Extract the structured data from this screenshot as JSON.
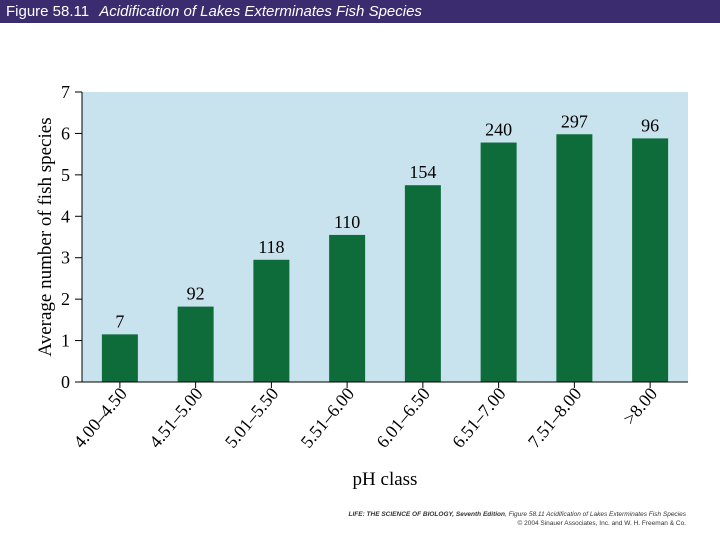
{
  "figure": {
    "number": "Figure 58.11",
    "caption": "Acidification of Lakes Exterminates Fish Species"
  },
  "colors": {
    "plot_background": "#c9e3ee",
    "bar": "#0e6b3a",
    "header": "#3a2c6e"
  },
  "chart_data": {
    "type": "bar",
    "title": "",
    "xlabel": "pH class",
    "ylabel": "Average number of fish species",
    "categories": [
      "4.00–4.50",
      "4.51–5.00",
      "5.01–5.50",
      "5.51–6.00",
      "6.01–6.50",
      "6.51–7.00",
      "7.51–8.00",
      ">8.00"
    ],
    "values": [
      1.15,
      1.82,
      2.95,
      3.55,
      4.75,
      5.78,
      5.98,
      5.88
    ],
    "data_labels": [
      "7",
      "92",
      "118",
      "110",
      "154",
      "240",
      "297",
      "96"
    ],
    "ylim": [
      0,
      7
    ],
    "yticks": [
      0,
      1,
      2,
      3,
      4,
      5,
      6,
      7
    ],
    "grid": false,
    "legend": "none"
  },
  "credit": {
    "line1_book": "LIFE: THE SCIENCE OF BIOLOGY, Seventh Edition",
    "line1_rest": ", Figure 58.11 Acidification of Lakes Exterminates Fish Species",
    "line2": "© 2004 Sinauer Associates, Inc. and W. H. Freeman & Co."
  }
}
